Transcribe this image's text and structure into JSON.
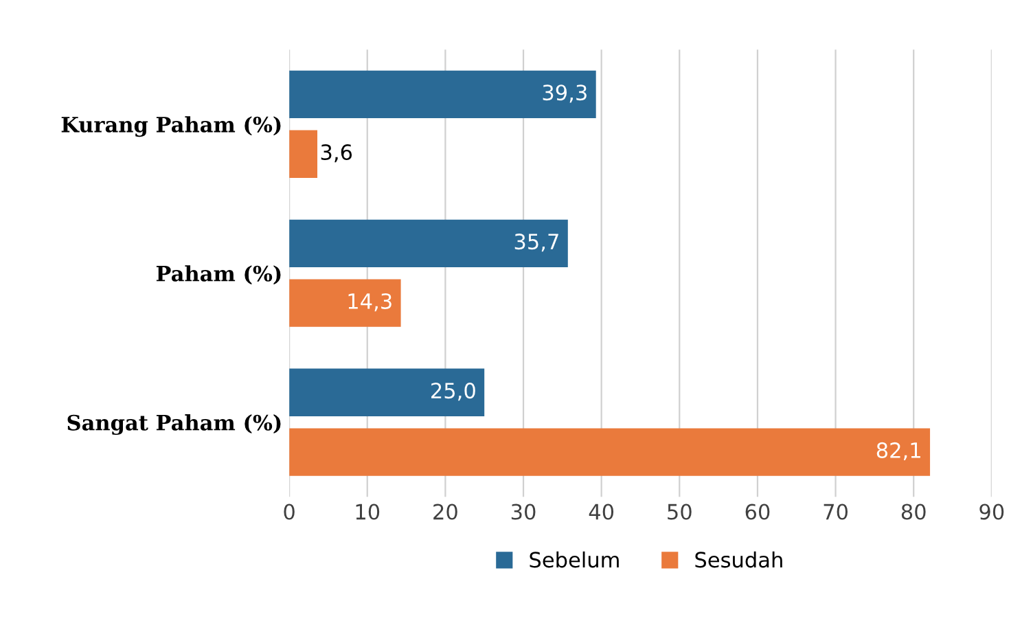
{
  "chart_data": {
    "type": "bar",
    "orientation": "horizontal",
    "categories": [
      "Kurang Paham (%)",
      "Paham (%)",
      "Sangat Paham (%)"
    ],
    "series": [
      {
        "name": "Sebelum",
        "color": "#2a6a96",
        "values": [
          39.3,
          35.7,
          25.0
        ],
        "value_labels": [
          "39,3",
          "35,7",
          "25,0"
        ]
      },
      {
        "name": "Sesudah",
        "color": "#ea7a3c",
        "values": [
          3.6,
          14.3,
          82.1
        ],
        "value_labels": [
          "3,6",
          "14,3",
          "82,1"
        ]
      }
    ],
    "xlim": [
      0,
      90
    ],
    "xticks": [
      0,
      10,
      20,
      30,
      40,
      50,
      60,
      70,
      80,
      90
    ],
    "grid": "x",
    "legend": "bottom"
  }
}
